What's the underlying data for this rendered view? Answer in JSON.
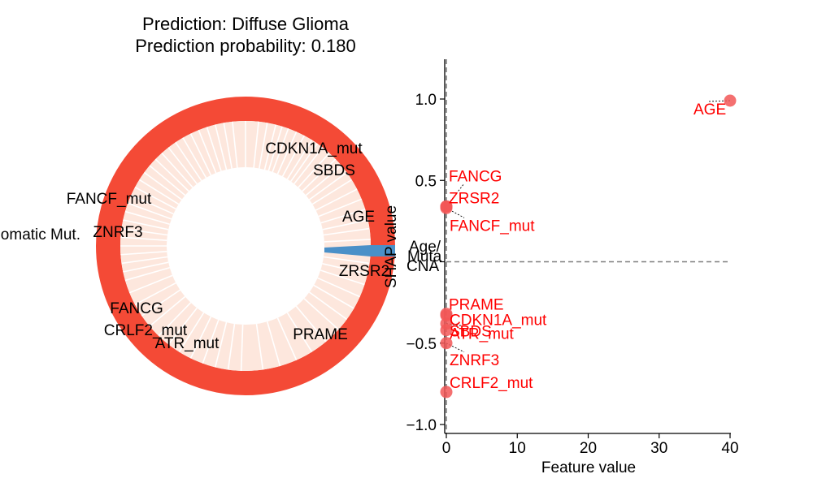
{
  "figure": {
    "title_line1": "Prediction: Diffuse Glioma",
    "title_line2": "Prediction probability: 0.180"
  },
  "chart_data": [
    {
      "type": "pie",
      "variant": "donut",
      "outer_ring": {
        "value": 1.0,
        "color": "#f44a36"
      },
      "wedge_color": "#fde7dd",
      "separator_color": "#ffffff",
      "highlight_color": "#4a90c8",
      "labeled_segments": [
        {
          "label": "CDKN1A_mut"
        },
        {
          "label": "SBDS"
        },
        {
          "label": "AGE"
        },
        {
          "label": "ZRSR2"
        },
        {
          "label": "PRAME"
        },
        {
          "label": "ATR_mut"
        },
        {
          "label": "CRLF2_mut"
        },
        {
          "label": "FANCG"
        },
        {
          "label": "ZNRF3"
        },
        {
          "label": "FANCF_mut"
        }
      ],
      "group_labels": [
        "Somatic Mut.",
        "Age/",
        "Muta",
        "CNA"
      ]
    },
    {
      "type": "scatter",
      "title": "",
      "xlabel": "Feature value",
      "ylabel": "SHAP value",
      "xlim": [
        -0.3,
        40.3
      ],
      "ylim": [
        -1.02,
        1.22
      ],
      "xticks": [
        0,
        10,
        20,
        30,
        40
      ],
      "xtick_labels": [
        "0",
        "10",
        "20",
        "30",
        "40"
      ],
      "yticks": [
        -1.0,
        -0.5,
        0.0,
        0.5,
        1.0
      ],
      "ytick_labels": [
        "−1.0",
        "−0.5",
        "",
        "0.5",
        "1.0"
      ],
      "reference_line_y": 0,
      "reference_line_x": 0,
      "point_color": "#f25757",
      "label_color": "#ff0000",
      "points": [
        {
          "label": "AGE",
          "x": 40,
          "y": 0.99
        },
        {
          "label": "FANCG",
          "x": 0,
          "y": 0.34
        },
        {
          "label": "ZRSR2",
          "x": 0,
          "y": 0.34
        },
        {
          "label": "FANCF_mut",
          "x": 0,
          "y": 0.33
        },
        {
          "label": "PRAME",
          "x": 0,
          "y": -0.32
        },
        {
          "label": "CDKN1A_mut",
          "x": 0,
          "y": -0.33
        },
        {
          "label": "ATR_mut",
          "x": 0,
          "y": -0.38
        },
        {
          "label": "SBDS",
          "x": 0,
          "y": -0.42
        },
        {
          "label": "ZNRF3",
          "x": 0,
          "y": -0.5
        },
        {
          "label": "CRLF2_mut",
          "x": 0,
          "y": -0.8
        }
      ]
    }
  ]
}
